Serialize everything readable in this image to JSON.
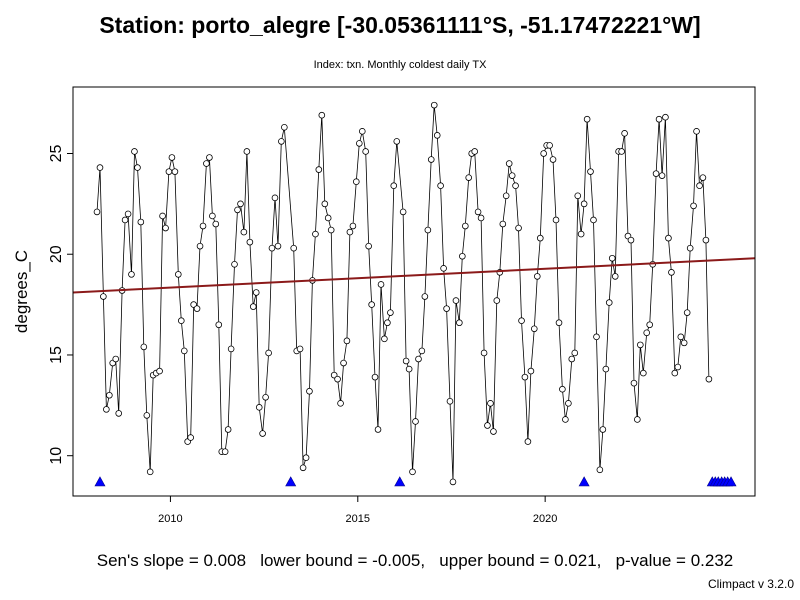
{
  "chart_data": {
    "type": "line",
    "title": "Station: porto_alegre [-30.05361111°S, -51.17472221°W]",
    "subtitle": "Index: txn. Monthly coldest daily TX",
    "ylabel": "degrees_C",
    "xlabel": "",
    "xlim": [
      2007.4,
      2025.6
    ],
    "ylim": [
      8.0,
      28.3
    ],
    "x_ticks": [
      "2010",
      "2015",
      "2020"
    ],
    "y_ticks": [
      "10",
      "15",
      "20",
      "25"
    ],
    "series": [
      {
        "values": [
          [
            2008.04,
            22.1
          ],
          [
            2008.12,
            24.3
          ],
          [
            2008.21,
            17.9
          ],
          [
            2008.29,
            12.3
          ],
          [
            2008.37,
            13.0
          ],
          [
            2008.46,
            14.6
          ],
          [
            2008.54,
            14.8
          ],
          [
            2008.62,
            12.1
          ],
          [
            2008.71,
            18.2
          ],
          [
            2008.79,
            21.7
          ],
          [
            2008.87,
            22.0
          ],
          [
            2008.96,
            19.0
          ],
          [
            2009.04,
            25.1
          ],
          [
            2009.12,
            24.3
          ],
          [
            2009.21,
            21.6
          ],
          [
            2009.29,
            15.4
          ],
          [
            2009.37,
            12.0
          ],
          [
            2009.46,
            9.2
          ],
          [
            2009.54,
            14.0
          ],
          [
            2009.62,
            14.1
          ],
          [
            2009.71,
            14.2
          ],
          [
            2009.79,
            21.9
          ],
          [
            2009.87,
            21.3
          ],
          [
            2009.96,
            24.1
          ],
          [
            2010.04,
            24.8
          ],
          [
            2010.12,
            24.1
          ],
          [
            2010.21,
            19.0
          ],
          [
            2010.29,
            16.7
          ],
          [
            2010.37,
            15.2
          ],
          [
            2010.46,
            10.7
          ],
          [
            2010.54,
            10.9
          ],
          [
            2010.62,
            17.5
          ],
          [
            2010.71,
            17.3
          ],
          [
            2010.79,
            20.4
          ],
          [
            2010.87,
            21.4
          ],
          [
            2010.96,
            24.5
          ],
          [
            2011.04,
            24.8
          ],
          [
            2011.12,
            21.9
          ],
          [
            2011.21,
            21.5
          ],
          [
            2011.29,
            16.5
          ],
          [
            2011.37,
            10.2
          ],
          [
            2011.46,
            10.2
          ],
          [
            2011.54,
            11.3
          ],
          [
            2011.62,
            15.3
          ],
          [
            2011.71,
            19.5
          ],
          [
            2011.79,
            22.2
          ],
          [
            2011.87,
            22.5
          ],
          [
            2011.96,
            21.1
          ],
          [
            2012.04,
            25.1
          ],
          [
            2012.12,
            20.6
          ],
          [
            2012.21,
            17.4
          ],
          [
            2012.29,
            18.1
          ],
          [
            2012.37,
            12.4
          ],
          [
            2012.46,
            11.1
          ],
          [
            2012.54,
            12.9
          ],
          [
            2012.62,
            15.1
          ],
          [
            2012.71,
            20.3
          ],
          [
            2012.79,
            22.8
          ],
          [
            2012.87,
            20.4
          ],
          [
            2012.96,
            25.6
          ],
          [
            2013.04,
            26.3
          ],
          [
            2013.29,
            20.3
          ],
          [
            2013.37,
            15.2
          ],
          [
            2013.46,
            15.3
          ],
          [
            2013.54,
            9.4
          ],
          [
            2013.62,
            9.9
          ],
          [
            2013.71,
            13.2
          ],
          [
            2013.79,
            18.7
          ],
          [
            2013.87,
            21.0
          ],
          [
            2013.96,
            24.2
          ],
          [
            2014.04,
            26.9
          ],
          [
            2014.12,
            22.5
          ],
          [
            2014.21,
            21.8
          ],
          [
            2014.29,
            21.2
          ],
          [
            2014.37,
            14.0
          ],
          [
            2014.46,
            13.8
          ],
          [
            2014.54,
            12.6
          ],
          [
            2014.62,
            14.6
          ],
          [
            2014.71,
            15.7
          ],
          [
            2014.79,
            21.1
          ],
          [
            2014.87,
            21.4
          ],
          [
            2014.96,
            23.6
          ],
          [
            2015.04,
            25.5
          ],
          [
            2015.12,
            26.1
          ],
          [
            2015.21,
            25.1
          ],
          [
            2015.29,
            20.4
          ],
          [
            2015.37,
            17.5
          ],
          [
            2015.46,
            13.9
          ],
          [
            2015.54,
            11.3
          ],
          [
            2015.62,
            18.5
          ],
          [
            2015.71,
            15.8
          ],
          [
            2015.79,
            16.6
          ],
          [
            2015.87,
            17.1
          ],
          [
            2015.96,
            23.4
          ],
          [
            2016.04,
            25.6
          ],
          [
            2016.21,
            22.1
          ],
          [
            2016.29,
            14.7
          ],
          [
            2016.37,
            14.3
          ],
          [
            2016.46,
            9.2
          ],
          [
            2016.54,
            11.7
          ],
          [
            2016.62,
            14.8
          ],
          [
            2016.71,
            15.2
          ],
          [
            2016.79,
            17.9
          ],
          [
            2016.87,
            21.2
          ],
          [
            2016.96,
            24.7
          ],
          [
            2017.04,
            27.4
          ],
          [
            2017.12,
            25.9
          ],
          [
            2017.21,
            23.4
          ],
          [
            2017.29,
            19.3
          ],
          [
            2017.37,
            17.3
          ],
          [
            2017.46,
            12.7
          ],
          [
            2017.54,
            8.7
          ],
          [
            2017.62,
            17.7
          ],
          [
            2017.71,
            16.6
          ],
          [
            2017.79,
            19.9
          ],
          [
            2017.87,
            21.4
          ],
          [
            2017.96,
            23.8
          ],
          [
            2018.04,
            25.0
          ],
          [
            2018.12,
            25.1
          ],
          [
            2018.21,
            22.1
          ],
          [
            2018.29,
            21.8
          ],
          [
            2018.37,
            15.1
          ],
          [
            2018.46,
            11.5
          ],
          [
            2018.54,
            12.6
          ],
          [
            2018.62,
            11.2
          ],
          [
            2018.71,
            17.7
          ],
          [
            2018.79,
            19.1
          ],
          [
            2018.87,
            21.5
          ],
          [
            2018.96,
            22.9
          ],
          [
            2019.04,
            24.5
          ],
          [
            2019.12,
            23.9
          ],
          [
            2019.21,
            23.4
          ],
          [
            2019.29,
            21.3
          ],
          [
            2019.37,
            16.7
          ],
          [
            2019.46,
            13.9
          ],
          [
            2019.54,
            10.7
          ],
          [
            2019.62,
            14.2
          ],
          [
            2019.71,
            16.3
          ],
          [
            2019.79,
            18.9
          ],
          [
            2019.87,
            20.8
          ],
          [
            2019.96,
            25.0
          ],
          [
            2020.04,
            25.4
          ],
          [
            2020.12,
            25.4
          ],
          [
            2020.21,
            24.7
          ],
          [
            2020.29,
            21.7
          ],
          [
            2020.37,
            16.6
          ],
          [
            2020.46,
            13.3
          ],
          [
            2020.54,
            11.8
          ],
          [
            2020.62,
            12.6
          ],
          [
            2020.71,
            14.8
          ],
          [
            2020.79,
            15.1
          ],
          [
            2020.87,
            22.9
          ],
          [
            2020.96,
            21.0
          ],
          [
            2021.04,
            22.5
          ],
          [
            2021.12,
            26.7
          ],
          [
            2021.21,
            24.1
          ],
          [
            2021.29,
            21.7
          ],
          [
            2021.37,
            15.9
          ],
          [
            2021.46,
            9.3
          ],
          [
            2021.54,
            11.3
          ],
          [
            2021.62,
            14.3
          ],
          [
            2021.71,
            17.6
          ],
          [
            2021.79,
            19.8
          ],
          [
            2021.87,
            18.9
          ],
          [
            2021.96,
            25.1
          ],
          [
            2022.04,
            25.1
          ],
          [
            2022.12,
            26.0
          ],
          [
            2022.21,
            20.9
          ],
          [
            2022.29,
            20.7
          ],
          [
            2022.37,
            13.6
          ],
          [
            2022.46,
            11.8
          ],
          [
            2022.54,
            15.5
          ],
          [
            2022.62,
            14.1
          ],
          [
            2022.71,
            16.1
          ],
          [
            2022.79,
            16.5
          ],
          [
            2022.87,
            19.5
          ],
          [
            2022.96,
            24.0
          ],
          [
            2023.04,
            26.7
          ],
          [
            2023.12,
            23.9
          ],
          [
            2023.21,
            26.8
          ],
          [
            2023.29,
            20.8
          ],
          [
            2023.37,
            19.1
          ],
          [
            2023.46,
            14.1
          ],
          [
            2023.54,
            14.4
          ],
          [
            2023.62,
            15.9
          ],
          [
            2023.71,
            15.6
          ],
          [
            2023.79,
            17.1
          ],
          [
            2023.87,
            20.3
          ],
          [
            2023.96,
            22.4
          ],
          [
            2024.04,
            26.1
          ],
          [
            2024.12,
            23.4
          ],
          [
            2024.21,
            23.8
          ],
          [
            2024.29,
            20.7
          ],
          [
            2024.37,
            13.8
          ]
        ]
      }
    ],
    "trend_line": {
      "x": [
        2007.4,
        2025.6
      ],
      "y": [
        18.1,
        19.8
      ],
      "color": "#8b1a1a"
    },
    "missing_markers": {
      "x": [
        2008.12,
        2013.21,
        2016.12,
        2021.04,
        2024.46,
        2024.54,
        2024.62,
        2024.71,
        2024.79,
        2024.87,
        2024.96
      ],
      "y": 8.7,
      "color": "#0000ff"
    },
    "footer": "Sen's slope = 0.008   lower bound = -0.005,   upper bound = 0.021,   p-value = 0.232",
    "version": "Climpact v 3.2.0"
  }
}
